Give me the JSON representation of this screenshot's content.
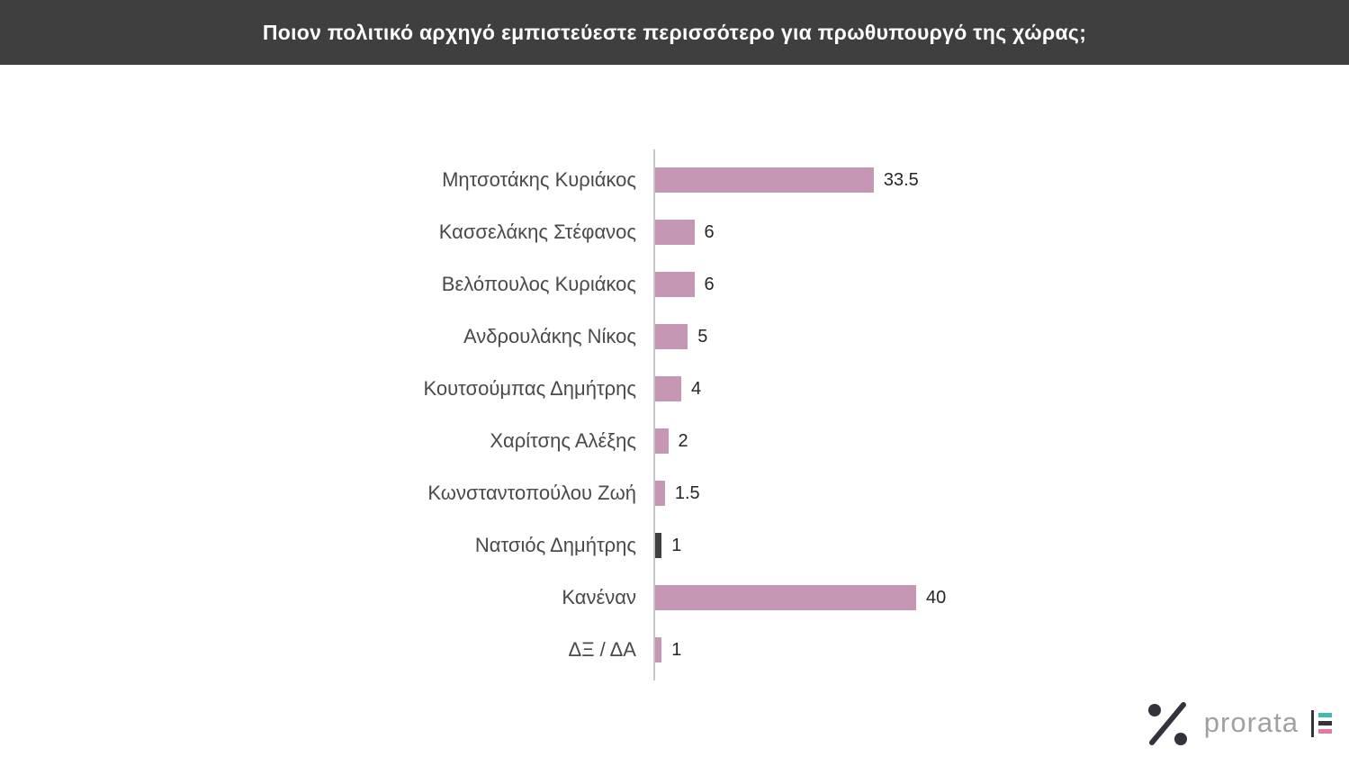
{
  "header": {
    "title": "Ποιον πολιτικό αρχηγό εμπιστεύεστε περισσότερο για πρωθυπουργό της χώρας;",
    "bg_color": "#3f3f3f",
    "text_color": "#ffffff"
  },
  "chart_data": {
    "type": "bar",
    "orientation": "horizontal",
    "title": "Ποιον πολιτικό αρχηγό εμπιστεύεστε περισσότερο για πρωθυπουργό της χώρας;",
    "categories": [
      "Μητσοτάκης Κυριάκος",
      "Κασσελάκης Στέφανος",
      "Βελόπουλος Κυριάκος",
      "Ανδρουλάκης Νίκος",
      "Κουτσούμπας Δημήτρης",
      "Χαρίτσης Αλέξης",
      "Κωνσταντοπούλου Ζωή",
      "Νατσιός Δημήτρης",
      "Κανέναν",
      "ΔΞ / ΔΑ"
    ],
    "values": [
      33.5,
      6,
      6,
      5,
      4,
      2,
      1.5,
      1,
      40,
      1
    ],
    "colors": [
      "#c697b5",
      "#c697b5",
      "#c697b5",
      "#c697b5",
      "#c697b5",
      "#c697b5",
      "#c697b5",
      "#3f3f3f",
      "#c697b5",
      "#c697b5"
    ],
    "default_bar_color": "#c697b5",
    "xlim": [
      0,
      40
    ],
    "xlabel": "",
    "ylabel": "",
    "grid": false,
    "legend": "none",
    "value_labels": "outside-end"
  },
  "footer": {
    "brand": "prorata",
    "brand_color": "#a0a0a0",
    "icons": {
      "percent_icon": "percent-mark",
      "brand_bars_icon": "stacked-bars-mark"
    },
    "accent_dark": "#33333d",
    "accent_teal": "#3fbcae",
    "accent_pink": "#e4799f"
  }
}
